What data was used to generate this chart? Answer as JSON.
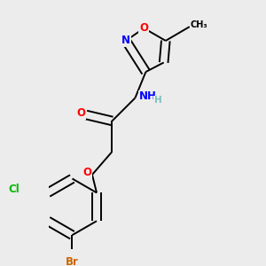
{
  "background_color": "#ececec",
  "bond_color": "#000000",
  "atom_colors": {
    "O": "#ff0000",
    "N": "#0000ff",
    "Cl": "#00bb00",
    "Br": "#cc6600",
    "C": "#000000",
    "H": "#7fbfbf"
  },
  "figsize": [
    3.0,
    3.0
  ],
  "dpi": 100,
  "lw": 1.4,
  "fs": 8.5
}
